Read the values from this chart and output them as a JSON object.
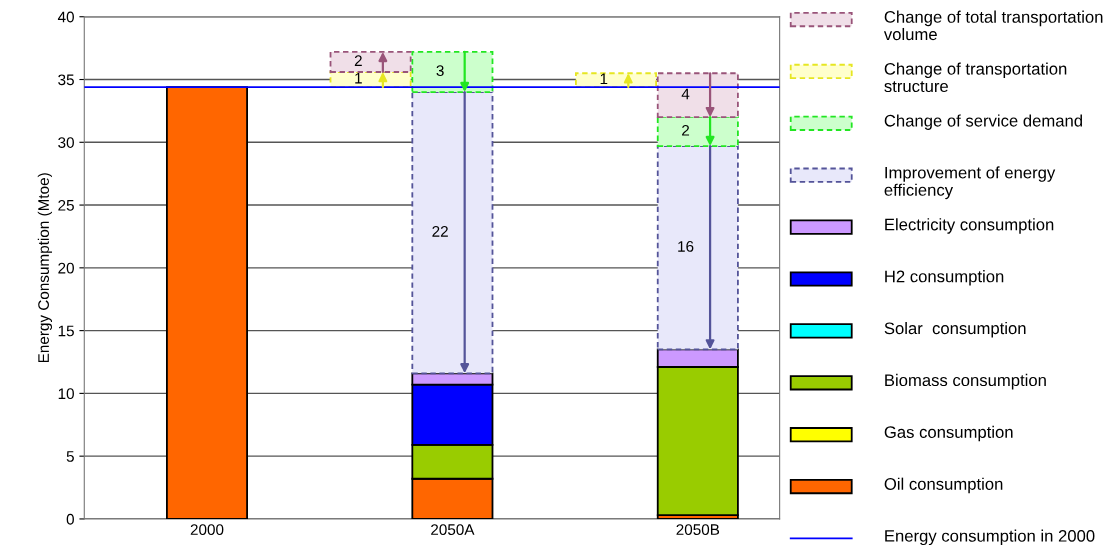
{
  "chart_data": {
    "type": "bar",
    "stacked": true,
    "ylabel": "Energy Consumption (Mtoe)",
    "categories": [
      "2000",
      null,
      null,
      "2050A",
      null,
      null,
      "2050B"
    ],
    "series": [
      {
        "name": "Oil consumption",
        "color": "#ff6600",
        "values": [
          34.4,
          null,
          null,
          3.2,
          null,
          null,
          0.3
        ]
      },
      {
        "name": "Gas consumption",
        "color": "#ffff00",
        "values": [
          null,
          null,
          null,
          null,
          null,
          null,
          null
        ]
      },
      {
        "name": "Biomass consumption",
        "color": "#99cc00",
        "values": [
          null,
          null,
          null,
          2.7,
          null,
          null,
          11.8
        ]
      },
      {
        "name": "Solar  consumption",
        "color": "#00ffff",
        "values": [
          null,
          null,
          null,
          null,
          null,
          null,
          null
        ]
      },
      {
        "name": "H2 consumption",
        "color": "#0000ff",
        "values": [
          null,
          null,
          null,
          4.8,
          null,
          null,
          null
        ]
      },
      {
        "name": "Electricity consumption",
        "color": "#cc99ff",
        "values": [
          null,
          null,
          null,
          0.9,
          null,
          null,
          1.4
        ]
      },
      {
        "name": "Improvement of energy efficiency",
        "color": "#e8e8fa",
        "line_style": "dashed",
        "values": [
          null,
          null,
          null,
          22.4,
          null,
          null,
          16.2
        ],
        "value_labels": [
          null,
          null,
          null,
          "22",
          null,
          null,
          "16"
        ]
      },
      {
        "name": "Change of service demand",
        "color": "#ccffcc",
        "line_style": "dashed",
        "values": [
          null,
          null,
          null,
          3.2,
          null,
          null,
          2.3
        ],
        "value_labels": [
          null,
          null,
          null,
          "3",
          null,
          null,
          "2"
        ]
      },
      {
        "name": "Change of transportation structure",
        "color": "#ffffcc",
        "line_style": "dashed",
        "base": [
          null,
          null,
          34.4,
          null,
          null,
          34.4,
          null
        ],
        "values": [
          null,
          null,
          1.2,
          null,
          null,
          1.1,
          null
        ],
        "value_labels": [
          null,
          null,
          "1",
          null,
          null,
          "1",
          null
        ]
      },
      {
        "name": "Change of total transportation volume",
        "color": "#f0dfe8",
        "line_style": "dashed",
        "base": [
          null,
          null,
          35.6,
          null,
          null,
          null,
          null
        ],
        "values": [
          null,
          null,
          1.6,
          null,
          null,
          null,
          3.5
        ],
        "value_labels": [
          null,
          null,
          "2",
          null,
          null,
          null,
          "4"
        ]
      }
    ],
    "ref_lines": [
      {
        "axis": "y",
        "value": 34.4,
        "label": "Energy consumption in 2000",
        "color": "#0000ff"
      }
    ],
    "ylim": [
      0,
      40
    ],
    "yticks": [
      0,
      5,
      10,
      15,
      20,
      25,
      30,
      35,
      40
    ],
    "grid": "y",
    "legend": "right"
  }
}
